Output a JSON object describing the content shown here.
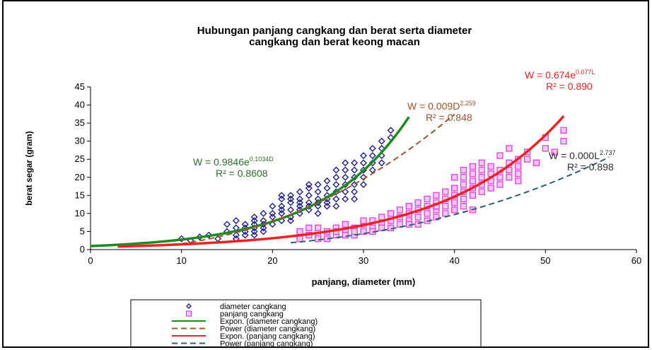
{
  "chart_data": {
    "type": "scatter",
    "title": [
      "Hubungan panjang cangkang dan berat serta diameter",
      "cangkang dan berat keong macan"
    ],
    "xlabel": "panjang, diameter (mm)",
    "ylabel": "berat segar (gram)",
    "xlim": [
      0,
      60
    ],
    "ylim": [
      0,
      45
    ],
    "xticks": [
      "0",
      "10",
      "20",
      "30",
      "40",
      "50",
      "60"
    ],
    "yticks": [
      "0",
      "5",
      "10",
      "15",
      "20",
      "25",
      "30",
      "35",
      "40",
      "45"
    ],
    "grid": false,
    "legend_position": "bottom",
    "series": [
      {
        "name": "diameter cangkang",
        "kind": "scatter",
        "marker": "diamond",
        "color": "#1f1f8f",
        "points": [
          [
            10,
            3
          ],
          [
            11,
            2.5
          ],
          [
            12,
            3.5
          ],
          [
            13,
            4
          ],
          [
            14,
            3
          ],
          [
            15,
            5
          ],
          [
            15,
            7
          ],
          [
            16,
            4
          ],
          [
            16,
            6
          ],
          [
            16,
            8
          ],
          [
            16,
            3
          ],
          [
            17,
            5
          ],
          [
            17,
            7
          ],
          [
            17,
            4
          ],
          [
            17,
            6
          ],
          [
            18,
            5
          ],
          [
            18,
            7
          ],
          [
            18,
            4
          ],
          [
            18,
            9
          ],
          [
            18,
            8
          ],
          [
            18,
            6
          ],
          [
            19,
            6
          ],
          [
            19,
            8
          ],
          [
            19,
            5
          ],
          [
            19,
            10
          ],
          [
            19,
            7
          ],
          [
            20,
            7
          ],
          [
            20,
            9
          ],
          [
            20,
            10
          ],
          [
            20,
            12
          ],
          [
            21,
            8
          ],
          [
            21,
            10
          ],
          [
            21,
            12
          ],
          [
            21,
            14
          ],
          [
            21,
            15
          ],
          [
            21,
            11
          ],
          [
            22,
            9
          ],
          [
            22,
            11
          ],
          [
            22,
            13
          ],
          [
            22,
            15
          ],
          [
            22,
            8
          ],
          [
            22,
            14
          ],
          [
            23,
            10
          ],
          [
            23,
            12
          ],
          [
            23,
            14
          ],
          [
            23,
            16
          ],
          [
            23,
            11
          ],
          [
            23,
            13
          ],
          [
            24,
            11
          ],
          [
            24,
            13
          ],
          [
            24,
            15
          ],
          [
            24,
            17
          ],
          [
            24,
            12
          ],
          [
            24,
            18
          ],
          [
            25,
            12
          ],
          [
            25,
            14
          ],
          [
            25,
            16
          ],
          [
            25,
            18
          ],
          [
            25,
            13
          ],
          [
            25,
            10
          ],
          [
            26,
            13
          ],
          [
            26,
            15
          ],
          [
            26,
            17
          ],
          [
            26,
            19
          ],
          [
            26,
            14
          ],
          [
            26,
            12
          ],
          [
            27,
            14
          ],
          [
            27,
            16
          ],
          [
            27,
            18
          ],
          [
            27,
            20
          ],
          [
            27,
            22
          ],
          [
            27,
            12
          ],
          [
            28,
            16
          ],
          [
            28,
            18
          ],
          [
            28,
            20
          ],
          [
            28,
            22
          ],
          [
            28,
            14
          ],
          [
            28,
            24
          ],
          [
            29,
            18
          ],
          [
            29,
            20
          ],
          [
            29,
            22
          ],
          [
            29,
            24
          ],
          [
            29,
            16
          ],
          [
            29,
            14
          ],
          [
            30,
            20
          ],
          [
            30,
            22
          ],
          [
            30,
            24
          ],
          [
            30,
            26
          ],
          [
            30,
            18
          ],
          [
            31,
            24
          ],
          [
            31,
            26
          ],
          [
            31,
            28
          ],
          [
            31,
            22
          ],
          [
            32,
            26
          ],
          [
            32,
            28
          ],
          [
            32,
            30
          ],
          [
            32,
            24
          ],
          [
            33,
            31
          ],
          [
            33,
            33
          ]
        ]
      },
      {
        "name": "panjang cangkang",
        "kind": "scatter",
        "marker": "square",
        "color": "#e040e0",
        "points": [
          [
            23,
            3
          ],
          [
            23,
            5
          ],
          [
            24,
            4
          ],
          [
            24,
            6
          ],
          [
            25,
            4
          ],
          [
            25,
            6
          ],
          [
            25,
            3
          ],
          [
            26,
            5
          ],
          [
            26,
            3
          ],
          [
            27,
            4
          ],
          [
            27,
            6
          ],
          [
            27,
            5
          ],
          [
            28,
            5
          ],
          [
            28,
            7
          ],
          [
            28,
            4
          ],
          [
            29,
            6
          ],
          [
            29,
            4
          ],
          [
            29,
            5
          ],
          [
            30,
            5
          ],
          [
            30,
            7
          ],
          [
            30,
            8
          ],
          [
            31,
            6
          ],
          [
            31,
            8
          ],
          [
            31,
            5
          ],
          [
            32,
            7
          ],
          [
            32,
            9
          ],
          [
            32,
            6
          ],
          [
            33,
            8
          ],
          [
            33,
            10
          ],
          [
            33,
            6
          ],
          [
            34,
            9
          ],
          [
            34,
            11
          ],
          [
            34,
            7
          ],
          [
            35,
            10
          ],
          [
            35,
            12
          ],
          [
            35,
            8
          ],
          [
            35,
            7
          ],
          [
            36,
            11
          ],
          [
            36,
            13
          ],
          [
            36,
            9
          ],
          [
            36,
            7
          ],
          [
            37,
            10
          ],
          [
            37,
            12
          ],
          [
            37,
            14
          ],
          [
            37,
            8
          ],
          [
            38,
            11
          ],
          [
            38,
            13
          ],
          [
            38,
            15
          ],
          [
            38,
            9
          ],
          [
            38,
            12
          ],
          [
            39,
            12
          ],
          [
            39,
            14
          ],
          [
            39,
            16
          ],
          [
            39,
            10
          ],
          [
            40,
            13
          ],
          [
            40,
            15
          ],
          [
            40,
            17
          ],
          [
            40,
            11
          ],
          [
            40,
            20
          ],
          [
            41,
            14
          ],
          [
            41,
            16
          ],
          [
            41,
            18
          ],
          [
            41,
            20
          ],
          [
            41,
            22
          ],
          [
            41,
            12
          ],
          [
            42,
            15
          ],
          [
            42,
            17
          ],
          [
            42,
            19
          ],
          [
            42,
            21
          ],
          [
            42,
            23
          ],
          [
            42,
            11
          ],
          [
            43,
            16
          ],
          [
            43,
            18
          ],
          [
            43,
            20
          ],
          [
            43,
            22
          ],
          [
            43,
            24
          ],
          [
            44,
            17
          ],
          [
            44,
            19
          ],
          [
            44,
            21
          ],
          [
            44,
            23
          ],
          [
            45,
            18
          ],
          [
            45,
            20
          ],
          [
            45,
            22
          ],
          [
            45,
            26
          ],
          [
            46,
            20
          ],
          [
            46,
            22
          ],
          [
            46,
            24
          ],
          [
            46,
            28
          ],
          [
            47,
            21
          ],
          [
            47,
            23
          ],
          [
            47,
            19
          ],
          [
            47,
            25
          ],
          [
            48,
            25
          ],
          [
            48,
            27
          ],
          [
            49,
            24
          ],
          [
            50,
            28
          ],
          [
            50,
            31
          ],
          [
            51,
            27
          ],
          [
            52,
            33
          ],
          [
            52,
            30
          ]
        ]
      },
      {
        "name": "Expon. (diameter cangkang)",
        "kind": "trendline",
        "dash": "solid",
        "color": "#1f8a1f",
        "model": "exp",
        "a": 0.9846,
        "b": 0.1034,
        "x_range": [
          0,
          35
        ]
      },
      {
        "name": "Power (diameter cangkang)",
        "kind": "trendline",
        "dash": "dashed",
        "color": "#a0522d",
        "model": "power",
        "a": 0.009,
        "b": 2.259,
        "x_range": [
          9,
          40
        ]
      },
      {
        "name": "Expon. (panjang cangkang)",
        "kind": "trendline",
        "dash": "solid",
        "color": "#ee2222",
        "model": "exp",
        "a": 0.674,
        "b": 0.077,
        "x_range": [
          3,
          52
        ]
      },
      {
        "name": "Power (panjang cangkang)",
        "kind": "trendline",
        "dash": "dashed",
        "color": "#2f5f6f",
        "model": "power",
        "a": 0.0004,
        "b": 2.737,
        "x_range": [
          22,
          57
        ]
      }
    ],
    "annotations": [
      {
        "id": "eq-diam-exp",
        "line1": "W = 0.9846e",
        "sup": "0.1034D",
        "line2": "R² = 0.8608",
        "color": "#2e6b2e"
      },
      {
        "id": "eq-diam-pow",
        "line1": "W = 0.009D",
        "sup": "2.259",
        "line2": "R² = 0.848",
        "color": "#a0522d"
      },
      {
        "id": "eq-panj-exp",
        "line1": "W = 0.674e",
        "sup": "0.077L",
        "line2": "R² = 0.890",
        "color": "#ee2222"
      },
      {
        "id": "eq-panj-pow",
        "line1": "W = 0.000L",
        "sup": "2.737",
        "line2": "R² = 0.898",
        "color": "#2b2b2b"
      }
    ]
  }
}
